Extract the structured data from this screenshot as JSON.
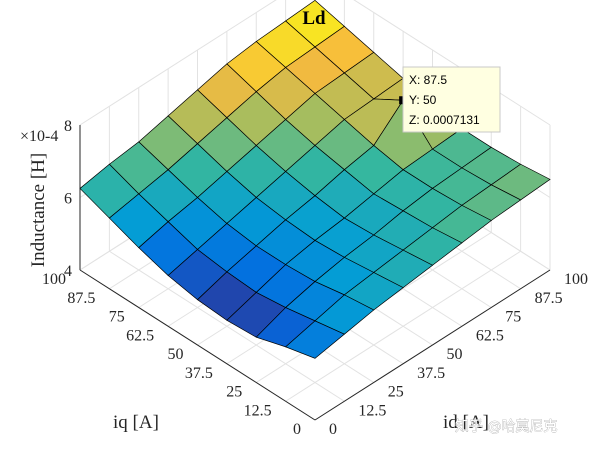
{
  "chart_data": {
    "type": "surface3d",
    "title": "Ld",
    "xlabel": "id [A]",
    "ylabel": "iq [A]",
    "zlabel": "Inductance [H]",
    "z_exponent_label": "×10-4",
    "x": [
      0,
      12.5,
      25,
      37.5,
      50,
      62.5,
      75,
      87.5,
      100
    ],
    "y": [
      0,
      12.5,
      25,
      37.5,
      50,
      62.5,
      75,
      87.5,
      100
    ],
    "x_ticks": [
      "0",
      "12.5",
      "25",
      "37.5",
      "50",
      "62.5",
      "75",
      "87.5",
      "100"
    ],
    "y_ticks": [
      "0",
      "12.5",
      "25",
      "37.5",
      "50",
      "62.5",
      "75",
      "87.5",
      "100"
    ],
    "z_ticks": [
      "4",
      "6",
      "8"
    ],
    "zlim": [
      0.0004,
      0.0008
    ],
    "z_rows_by_id": [
      [
        0.00057,
        0.00055,
        0.000525,
        0.00052,
        0.000525,
        0.00054,
        0.000565,
        0.000595,
        0.000625
      ],
      [
        0.000585,
        0.00057,
        0.000555,
        0.000545,
        0.00055,
        0.00056,
        0.000585,
        0.00061,
        0.00064
      ],
      [
        0.0006,
        0.00059,
        0.000575,
        0.00057,
        0.00057,
        0.00058,
        0.0006,
        0.000625,
        0.00065
      ],
      [
        0.00061,
        0.0006,
        0.00059,
        0.000585,
        0.00059,
        0.0006,
        0.00062,
        0.000645,
        0.00067
      ],
      [
        0.00062,
        0.00061,
        0.0006,
        0.000595,
        0.000605,
        0.00062,
        0.00064,
        0.000665,
        0.00069
      ],
      [
        0.00063,
        0.00062,
        0.000615,
        0.00061,
        0.000625,
        0.00064,
        0.00066,
        0.000685,
        0.00071
      ],
      [
        0.00064,
        0.00063,
        0.000625,
        0.000625,
        0.00064,
        0.00066,
        0.00068,
        0.0007,
        0.00072
      ],
      [
        0.000645,
        0.000635,
        0.00063,
        0.00063,
        0.0007131,
        0.000665,
        0.000685,
        0.000705,
        0.000725
      ],
      [
        0.00065,
        0.00064,
        0.000635,
        0.000635,
        0.00065,
        0.00067,
        0.00069,
        0.00071,
        0.00073
      ]
    ],
    "datatip": {
      "x": 87.5,
      "y": 50,
      "z": 0.0007131,
      "lines": [
        "X: 87.5",
        "Y: 50",
        "Z: 0.0007131"
      ]
    },
    "grid": true,
    "colormap": "parula"
  },
  "watermark": "知乎 @哈莫尼克"
}
